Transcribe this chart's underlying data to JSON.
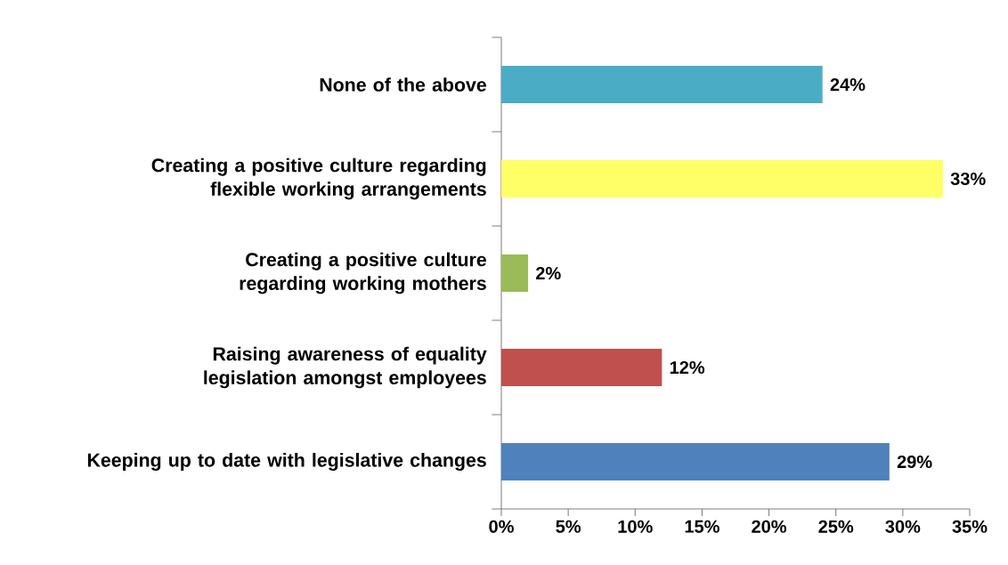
{
  "chart_data": {
    "type": "bar",
    "orientation": "horizontal",
    "categories": [
      "None of the above",
      "Creating a positive culture regarding flexible working arrangements",
      "Creating a positive culture regarding working mothers",
      "Raising awareness of equality legislation amongst employees",
      "Keeping up to date with legislative changes"
    ],
    "values": [
      24,
      33,
      2,
      12,
      29
    ],
    "value_labels": [
      "24%",
      "33%",
      "2%",
      "12%",
      "29%"
    ],
    "colors": [
      "#4bacc6",
      "#ffff66",
      "#9bbb59",
      "#c0504d",
      "#4f81bd"
    ],
    "xlim": [
      0,
      35
    ],
    "xticks": [
      {
        "value": 0,
        "label": "0%"
      },
      {
        "value": 5,
        "label": "5%"
      },
      {
        "value": 10,
        "label": "10%"
      },
      {
        "value": 15,
        "label": "15%"
      },
      {
        "value": 20,
        "label": "20%"
      },
      {
        "value": 25,
        "label": "25%"
      },
      {
        "value": 30,
        "label": "30%"
      },
      {
        "value": 35,
        "label": "35%"
      }
    ]
  }
}
